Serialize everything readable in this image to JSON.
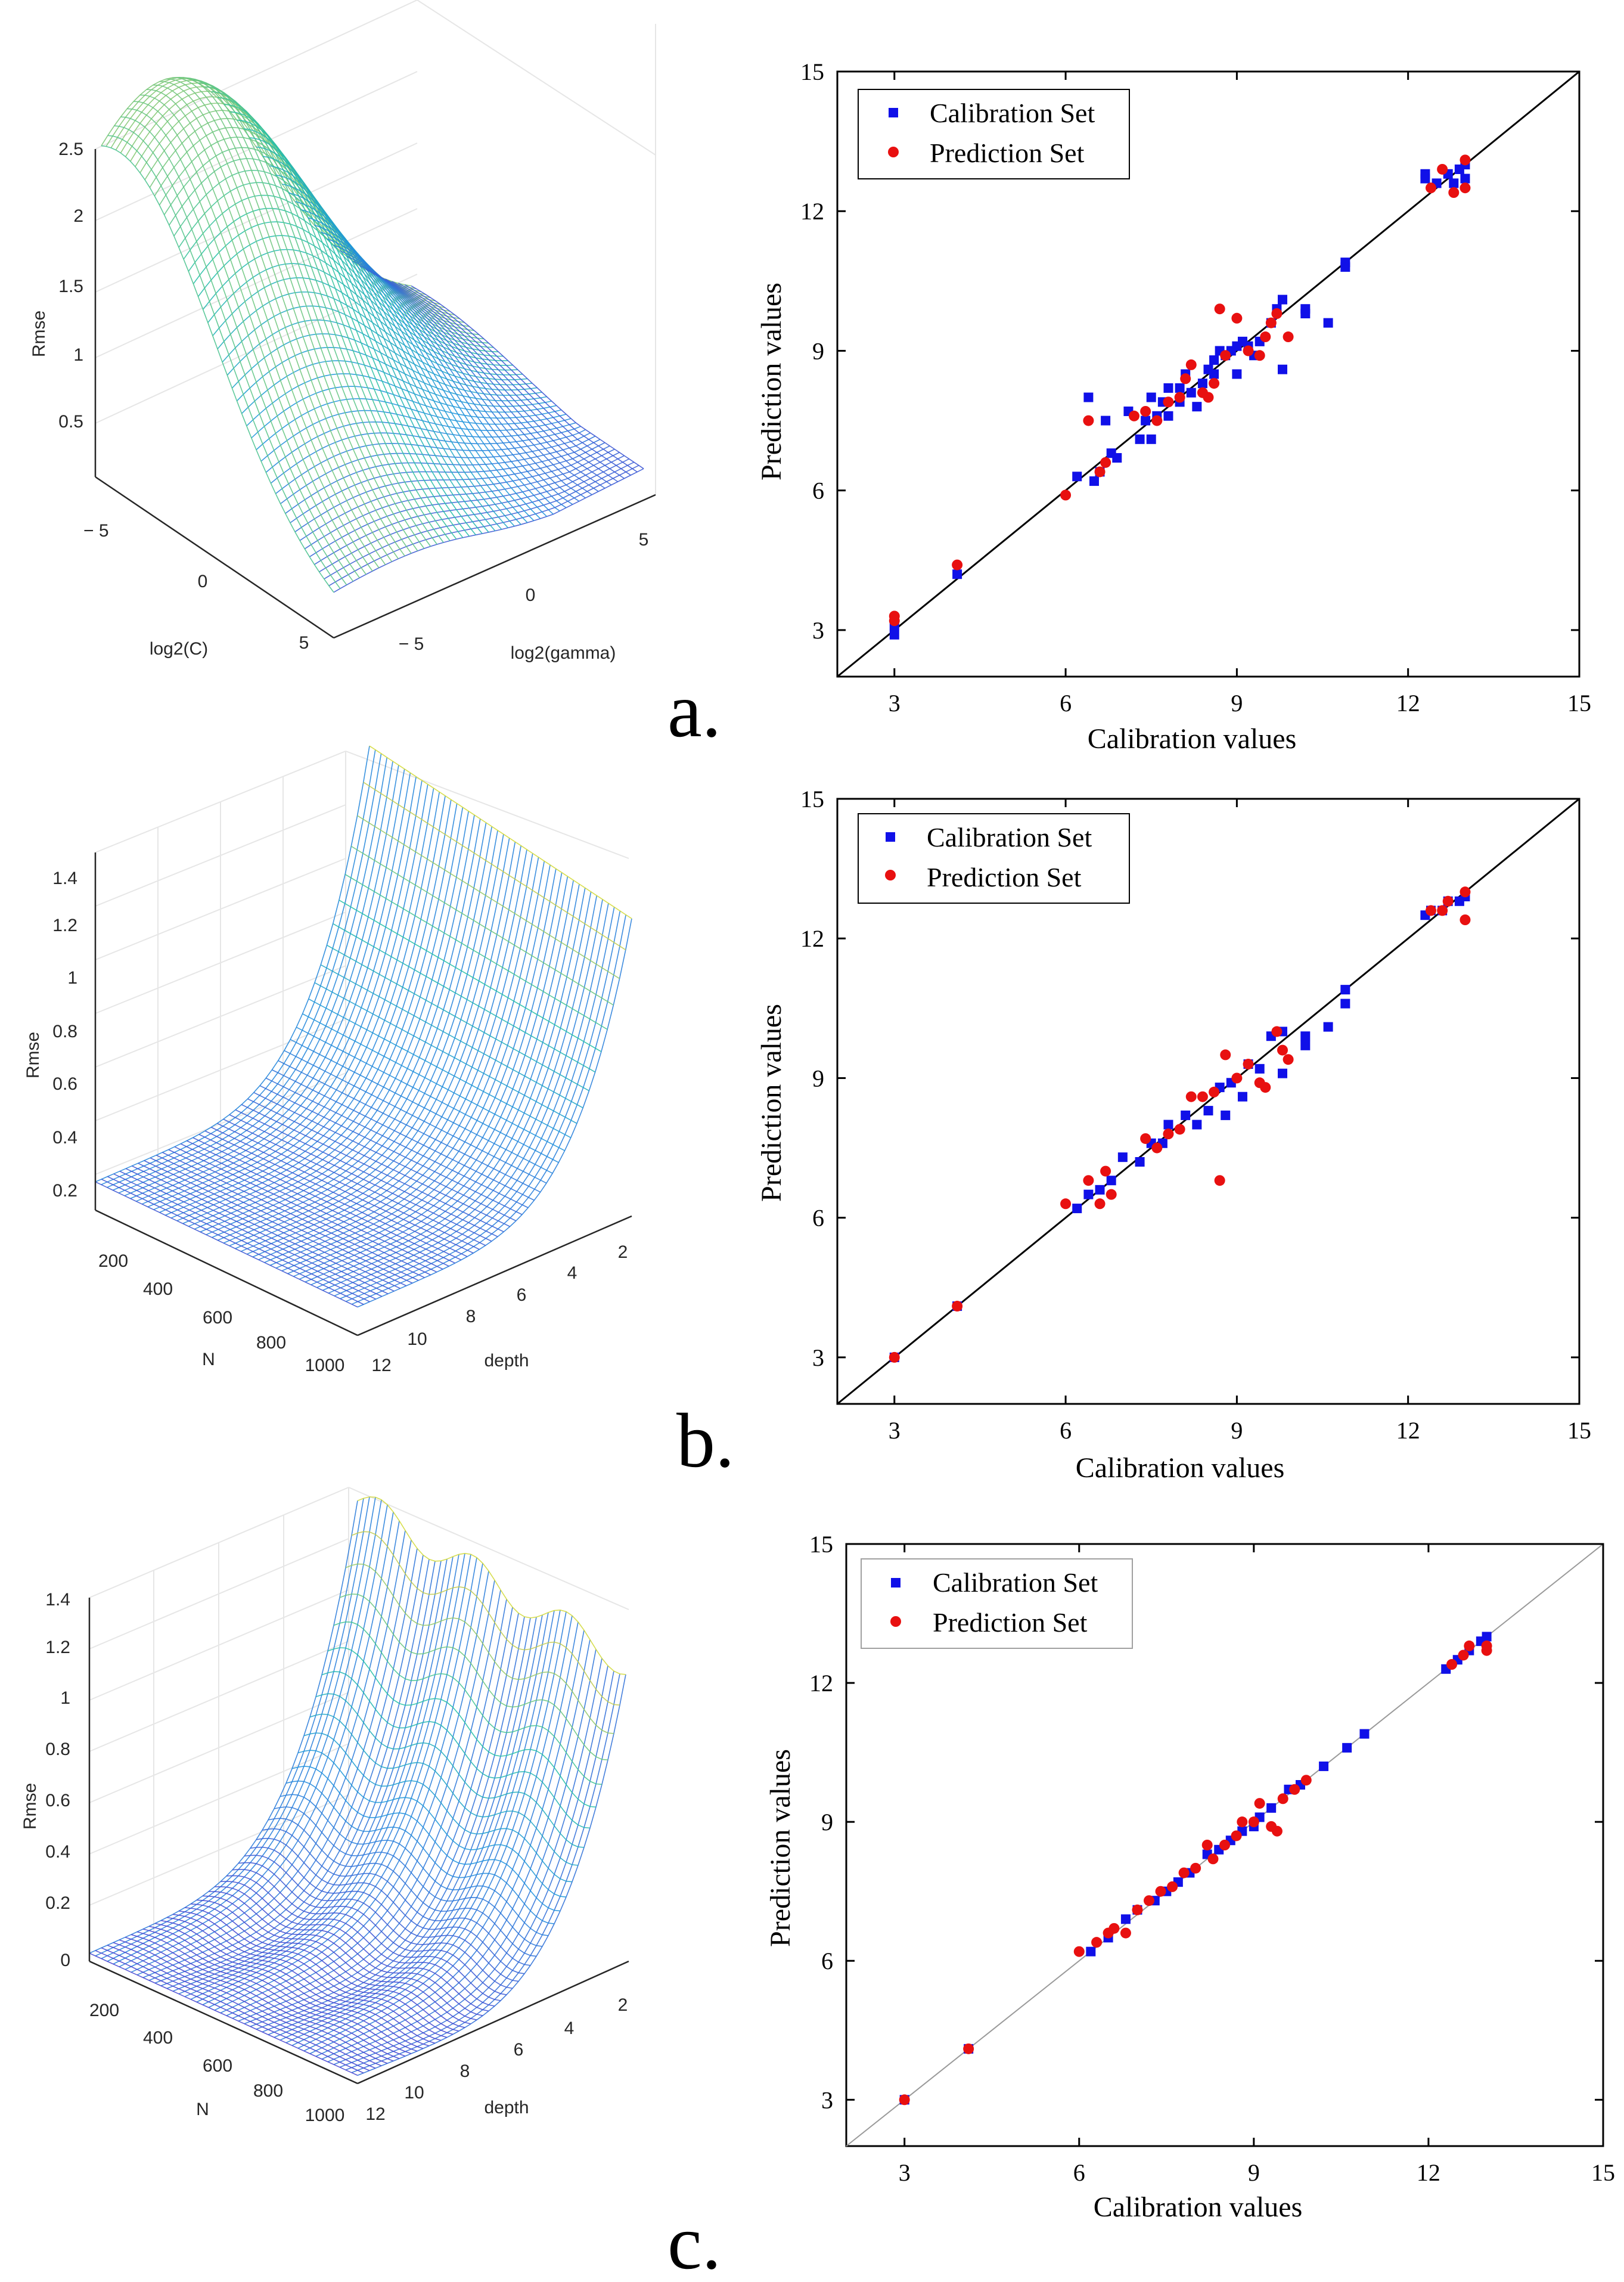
{
  "chart_data": [
    {
      "id": "a-surface",
      "type": "surface",
      "panel": "a.",
      "zlabel": "Rmse",
      "xlabel": "log2(C)",
      "ylabel": "log2(gamma)",
      "z_ticks": [
        "0.5",
        "1",
        "1.5",
        "2",
        "2.5"
      ],
      "x_ticks": [
        "− 5",
        "0",
        "5"
      ],
      "y_ticks": [
        "− 5",
        "0",
        "5"
      ],
      "zlim": [
        0,
        2.6
      ]
    },
    {
      "id": "a-scatter",
      "type": "scatter",
      "panel": "a.",
      "xlabel": "Calibration values",
      "ylabel": "Prediction values",
      "xlim": [
        2,
        15
      ],
      "ylim": [
        2,
        15
      ],
      "ticks": [
        3,
        6,
        9,
        12,
        15
      ],
      "legend": [
        "Calibration Set",
        "Prediction Set"
      ],
      "colors": {
        "calibration": "#1010e8",
        "prediction": "#e81010"
      },
      "series": [
        {
          "name": "Calibration Set",
          "marker": "square",
          "points": [
            [
              3,
              2.9
            ],
            [
              3,
              3.1
            ],
            [
              4.1,
              4.2
            ],
            [
              6.2,
              6.3
            ],
            [
              6.4,
              8.0
            ],
            [
              6.5,
              6.2
            ],
            [
              6.6,
              6.4
            ],
            [
              6.7,
              7.5
            ],
            [
              6.8,
              6.8
            ],
            [
              6.9,
              6.7
            ],
            [
              7.1,
              7.7
            ],
            [
              7.3,
              7.1
            ],
            [
              7.4,
              7.5
            ],
            [
              7.5,
              8.0
            ],
            [
              7.5,
              7.1
            ],
            [
              7.6,
              7.6
            ],
            [
              7.7,
              7.9
            ],
            [
              7.8,
              8.2
            ],
            [
              7.8,
              7.6
            ],
            [
              8.0,
              7.9
            ],
            [
              8.0,
              8.2
            ],
            [
              8.1,
              8.5
            ],
            [
              8.2,
              8.1
            ],
            [
              8.3,
              7.8
            ],
            [
              8.4,
              8.3
            ],
            [
              8.5,
              8.6
            ],
            [
              8.6,
              8.5
            ],
            [
              8.6,
              8.8
            ],
            [
              8.7,
              9.0
            ],
            [
              8.8,
              8.9
            ],
            [
              8.9,
              9.0
            ],
            [
              9.0,
              9.1
            ],
            [
              9.0,
              8.5
            ],
            [
              9.1,
              9.2
            ],
            [
              9.2,
              9.1
            ],
            [
              9.3,
              8.9
            ],
            [
              9.4,
              9.2
            ],
            [
              9.6,
              9.6
            ],
            [
              9.7,
              9.9
            ],
            [
              9.8,
              8.6
            ],
            [
              9.8,
              10.1
            ],
            [
              10.2,
              9.8
            ],
            [
              10.2,
              9.9
            ],
            [
              10.6,
              9.6
            ],
            [
              10.9,
              10.8
            ],
            [
              10.9,
              10.9
            ],
            [
              12.3,
              12.7
            ],
            [
              12.3,
              12.8
            ],
            [
              12.5,
              12.6
            ],
            [
              12.7,
              12.8
            ],
            [
              12.8,
              12.6
            ],
            [
              12.9,
              12.9
            ],
            [
              13.0,
              12.7
            ],
            [
              13.0,
              13.0
            ]
          ]
        },
        {
          "name": "Prediction Set",
          "marker": "circle",
          "points": [
            [
              3,
              3.3
            ],
            [
              3,
              3.2
            ],
            [
              4.1,
              4.4
            ],
            [
              6.0,
              5.9
            ],
            [
              6.4,
              7.5
            ],
            [
              6.6,
              6.4
            ],
            [
              6.7,
              6.6
            ],
            [
              7.2,
              7.6
            ],
            [
              7.4,
              7.7
            ],
            [
              7.6,
              7.5
            ],
            [
              7.8,
              7.9
            ],
            [
              8.0,
              8.0
            ],
            [
              8.1,
              8.4
            ],
            [
              8.2,
              8.7
            ],
            [
              8.4,
              8.1
            ],
            [
              8.5,
              8.0
            ],
            [
              8.6,
              8.3
            ],
            [
              8.7,
              9.9
            ],
            [
              8.8,
              8.9
            ],
            [
              9.0,
              9.7
            ],
            [
              9.2,
              9.0
            ],
            [
              9.4,
              8.9
            ],
            [
              9.5,
              9.3
            ],
            [
              9.6,
              9.6
            ],
            [
              9.7,
              9.8
            ],
            [
              9.9,
              9.3
            ],
            [
              12.4,
              12.5
            ],
            [
              12.6,
              12.9
            ],
            [
              12.8,
              12.4
            ],
            [
              13.0,
              13.1
            ],
            [
              13.0,
              12.5
            ]
          ]
        }
      ]
    },
    {
      "id": "b-surface",
      "type": "surface",
      "panel": "b.",
      "zlabel": "Rmse",
      "xlabel": "N",
      "ylabel": "depth",
      "z_ticks": [
        "0.2",
        "0.4",
        "0.6",
        "0.8",
        "1",
        "1.2",
        "1.4"
      ],
      "x_ticks": [
        "200",
        "400",
        "600",
        "800",
        "1000"
      ],
      "y_ticks": [
        "2",
        "4",
        "6",
        "8",
        "10",
        "12"
      ],
      "zlim": [
        0.1,
        1.5
      ]
    },
    {
      "id": "b-scatter",
      "type": "scatter",
      "panel": "b.",
      "xlabel": "Calibration values",
      "ylabel": "Prediction values",
      "xlim": [
        2,
        15
      ],
      "ylim": [
        2,
        15
      ],
      "ticks": [
        3,
        6,
        9,
        12,
        15
      ],
      "legend": [
        "Calibration Set",
        "Prediction Set"
      ],
      "colors": {
        "calibration": "#1010e8",
        "prediction": "#e81010"
      },
      "series": [
        {
          "name": "Calibration Set",
          "marker": "square",
          "points": [
            [
              3,
              3
            ],
            [
              4.1,
              4.1
            ],
            [
              6.2,
              6.2
            ],
            [
              6.4,
              6.5
            ],
            [
              6.6,
              6.6
            ],
            [
              6.8,
              6.8
            ],
            [
              7.0,
              7.3
            ],
            [
              7.3,
              7.2
            ],
            [
              7.5,
              7.6
            ],
            [
              7.7,
              7.6
            ],
            [
              7.8,
              8.0
            ],
            [
              8.1,
              8.2
            ],
            [
              8.3,
              8.0
            ],
            [
              8.5,
              8.3
            ],
            [
              8.7,
              8.8
            ],
            [
              8.8,
              8.2
            ],
            [
              8.9,
              8.9
            ],
            [
              9.1,
              8.6
            ],
            [
              9.2,
              9.3
            ],
            [
              9.4,
              9.2
            ],
            [
              9.6,
              9.9
            ],
            [
              9.8,
              9.1
            ],
            [
              9.8,
              10.0
            ],
            [
              10.2,
              9.7
            ],
            [
              10.2,
              9.9
            ],
            [
              10.6,
              10.1
            ],
            [
              10.9,
              10.6
            ],
            [
              10.9,
              10.9
            ],
            [
              12.3,
              12.5
            ],
            [
              12.4,
              12.6
            ],
            [
              12.6,
              12.6
            ],
            [
              12.7,
              12.8
            ],
            [
              12.9,
              12.8
            ],
            [
              13.0,
              12.9
            ]
          ]
        },
        {
          "name": "Prediction Set",
          "marker": "circle",
          "points": [
            [
              3,
              3
            ],
            [
              4.1,
              4.1
            ],
            [
              6.0,
              6.3
            ],
            [
              6.4,
              6.8
            ],
            [
              6.6,
              6.3
            ],
            [
              6.7,
              7.0
            ],
            [
              6.8,
              6.5
            ],
            [
              7.4,
              7.7
            ],
            [
              7.6,
              7.5
            ],
            [
              7.8,
              7.8
            ],
            [
              8.0,
              7.9
            ],
            [
              8.2,
              8.6
            ],
            [
              8.4,
              8.6
            ],
            [
              8.6,
              8.7
            ],
            [
              8.7,
              6.8
            ],
            [
              8.8,
              9.5
            ],
            [
              9.0,
              9.0
            ],
            [
              9.2,
              9.3
            ],
            [
              9.4,
              8.9
            ],
            [
              9.5,
              8.8
            ],
            [
              9.7,
              10.0
            ],
            [
              9.8,
              9.6
            ],
            [
              9.9,
              9.4
            ],
            [
              12.4,
              12.6
            ],
            [
              12.6,
              12.6
            ],
            [
              12.7,
              12.8
            ],
            [
              13.0,
              13.0
            ],
            [
              13.0,
              12.4
            ]
          ]
        }
      ]
    },
    {
      "id": "c-surface",
      "type": "surface",
      "panel": "c.",
      "zlabel": "Rmse",
      "xlabel": "N",
      "ylabel": "depth",
      "z_ticks": [
        "0",
        "0.2",
        "0.4",
        "0.6",
        "0.8",
        "1",
        "1.2",
        "1.4"
      ],
      "x_ticks": [
        "200",
        "400",
        "600",
        "800",
        "1000"
      ],
      "y_ticks": [
        "2",
        "4",
        "6",
        "8",
        "10",
        "12"
      ],
      "zlim": [
        0,
        1.5
      ]
    },
    {
      "id": "c-scatter",
      "type": "scatter",
      "panel": "c.",
      "xlabel": "Calibration values",
      "ylabel": "Prediction values",
      "xlim": [
        2,
        15
      ],
      "ylim": [
        2,
        15
      ],
      "ticks": [
        3,
        6,
        9,
        12,
        15
      ],
      "legend": [
        "Calibration Set",
        "Prediction Set"
      ],
      "colors": {
        "calibration": "#1010e8",
        "prediction": "#e81010"
      },
      "series": [
        {
          "name": "Calibration Set",
          "marker": "square",
          "points": [
            [
              3,
              3
            ],
            [
              4.1,
              4.1
            ],
            [
              6.2,
              6.2
            ],
            [
              6.5,
              6.5
            ],
            [
              6.8,
              6.9
            ],
            [
              7.0,
              7.1
            ],
            [
              7.3,
              7.3
            ],
            [
              7.5,
              7.5
            ],
            [
              7.7,
              7.7
            ],
            [
              7.9,
              7.9
            ],
            [
              8.2,
              8.3
            ],
            [
              8.4,
              8.4
            ],
            [
              8.6,
              8.6
            ],
            [
              8.8,
              8.8
            ],
            [
              9.0,
              8.9
            ],
            [
              9.1,
              9.1
            ],
            [
              9.3,
              9.3
            ],
            [
              9.6,
              9.7
            ],
            [
              9.8,
              9.8
            ],
            [
              10.2,
              10.2
            ],
            [
              10.6,
              10.6
            ],
            [
              10.9,
              10.9
            ],
            [
              12.3,
              12.3
            ],
            [
              12.5,
              12.5
            ],
            [
              12.7,
              12.7
            ],
            [
              12.9,
              12.9
            ],
            [
              13.0,
              13.0
            ]
          ]
        },
        {
          "name": "Prediction Set",
          "marker": "circle",
          "points": [
            [
              3,
              3
            ],
            [
              4.1,
              4.1
            ],
            [
              6.0,
              6.2
            ],
            [
              6.3,
              6.4
            ],
            [
              6.5,
              6.6
            ],
            [
              6.6,
              6.7
            ],
            [
              6.8,
              6.6
            ],
            [
              7.0,
              7.1
            ],
            [
              7.2,
              7.3
            ],
            [
              7.4,
              7.5
            ],
            [
              7.6,
              7.6
            ],
            [
              7.8,
              7.9
            ],
            [
              8.0,
              8.0
            ],
            [
              8.2,
              8.5
            ],
            [
              8.3,
              8.2
            ],
            [
              8.5,
              8.5
            ],
            [
              8.7,
              8.7
            ],
            [
              8.8,
              9.0
            ],
            [
              9.0,
              9.0
            ],
            [
              9.1,
              9.4
            ],
            [
              9.3,
              8.9
            ],
            [
              9.4,
              8.8
            ],
            [
              9.5,
              9.5
            ],
            [
              9.7,
              9.7
            ],
            [
              9.9,
              9.9
            ],
            [
              12.4,
              12.4
            ],
            [
              12.6,
              12.6
            ],
            [
              12.7,
              12.8
            ],
            [
              13.0,
              12.8
            ],
            [
              13.0,
              12.7
            ]
          ]
        }
      ]
    }
  ]
}
